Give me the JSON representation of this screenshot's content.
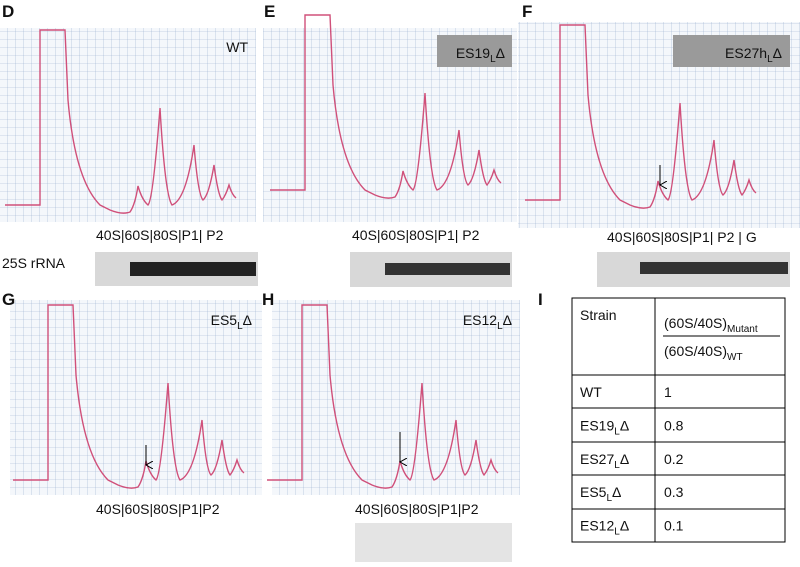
{
  "panels": [
    {
      "letter": "D",
      "label": {
        "base": "WT"
      },
      "fractions": "40S|60S|80S|P1| P2",
      "blot_label": "25S rRNA"
    },
    {
      "letter": "E",
      "label": {
        "base": "ES19",
        "sub": "L",
        "tail": "Δ"
      },
      "fractions": "40S|60S|80S|P1| P2"
    },
    {
      "letter": "F",
      "label": {
        "base": "ES27h",
        "sub": "L",
        "tail": "Δ"
      },
      "fractions": "40S|60S|80S|P1| P2 | G"
    },
    {
      "letter": "G",
      "label": {
        "base": "ES5",
        "sub": "L",
        "tail": "Δ"
      },
      "fractions": "40S|60S|80S|P1|P2"
    },
    {
      "letter": "H",
      "label": {
        "base": "ES12",
        "sub": "L",
        "tail": "Δ"
      },
      "fractions": "40S|60S|80S|P1|P2"
    }
  ],
  "table": {
    "letter": "I",
    "header": {
      "strain": "Strain",
      "num": {
        "base": "(60S/40S)",
        "sub": "Mutant"
      },
      "den": {
        "base": "(60S/40S)",
        "sub": "WT"
      }
    },
    "rows": [
      {
        "strain": {
          "base": "WT"
        },
        "value": "1"
      },
      {
        "strain": {
          "base": "ES19",
          "sub": "L",
          "tail": "Δ"
        },
        "value": "0.8"
      },
      {
        "strain": {
          "base": "ES27",
          "sub": "L",
          "tail": "Δ"
        },
        "value": "0.2"
      },
      {
        "strain": {
          "base": "ES5",
          "sub": "L",
          "tail": "Δ"
        },
        "value": "0.3"
      },
      {
        "strain": {
          "base": "ES12",
          "sub": "L",
          "tail": "Δ"
        },
        "value": "0.1"
      }
    ]
  }
}
